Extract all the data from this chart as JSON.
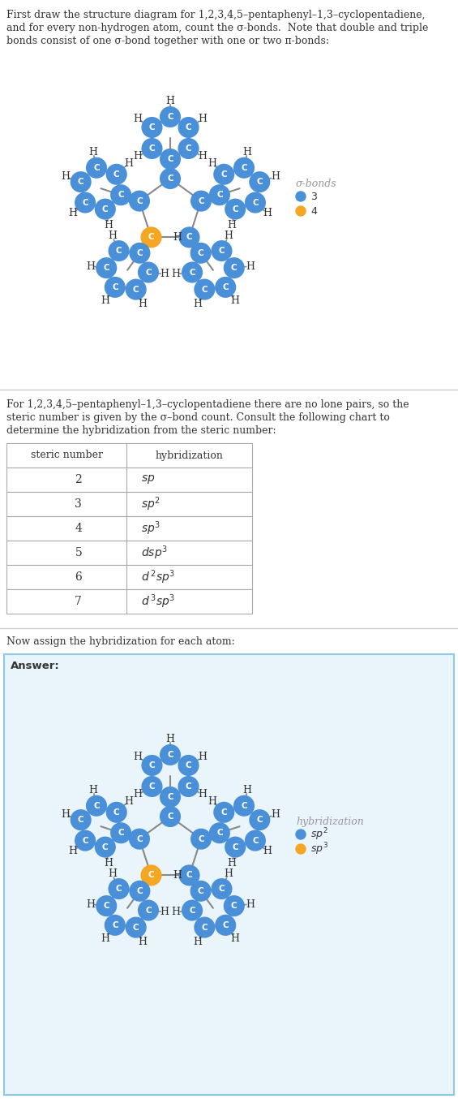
{
  "blue_color": "#4A90D9",
  "orange_color": "#F5A623",
  "bond_color": "#888888",
  "text_color": "#333333",
  "sigma_legend_label": "σ-bonds",
  "sigma_legend_3": "3",
  "sigma_legend_4": "4",
  "hyb_legend_label": "hybridization",
  "hyb_legend_sp2": "sp^2",
  "hyb_legend_sp3": "sp^3",
  "answer_bg_color": "#EAF4FB",
  "answer_border_color": "#8CC8E8",
  "sep_color": "#cccccc",
  "table_border_color": "#aaaaaa",
  "steric_numbers": [
    2,
    3,
    4,
    5,
    6,
    7
  ],
  "hybridizations": [
    "sp",
    "sp^2",
    "sp^3",
    "dsp^3",
    "d^2sp^3",
    "d^3sp^3"
  ],
  "title_line1": "First draw the structure diagram for 1,2,3,4,5–pentaphenyl–1,3–cyclopentadiene,",
  "title_line2": "and for every non-hydrogen atom, count the σ-bonds.  Note that double and triple",
  "title_line3": "bonds consist of one σ-bond together with one or two π-bonds:",
  "para_line1": "For 1,2,3,4,5–pentaphenyl–1,3–cyclopentadiene there are no lone pairs, so the",
  "para_line2": "steric number is given by the σ–bond count. Consult the following chart to",
  "para_line3": "determine the hybridization from the steric number:",
  "assign_text": "Now assign the hybridization for each atom:",
  "answer_label": "Answer:"
}
